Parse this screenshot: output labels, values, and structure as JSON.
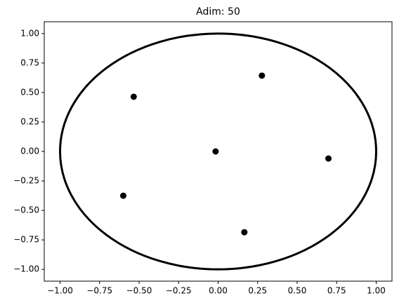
{
  "chart_data": {
    "type": "scatter",
    "title": "Adim: 50",
    "x": [
      0.277,
      -0.534,
      -0.016,
      0.698,
      -0.6,
      0.166
    ],
    "values": [
      0.643,
      0.464,
      0.0,
      -0.06,
      -0.375,
      -0.685
    ],
    "color": "#000000",
    "circle": {
      "center": [
        0,
        0
      ],
      "radius": 1,
      "color": "#000000"
    },
    "xlim": [
      -1.1,
      1.1
    ],
    "ylim": [
      -1.1,
      1.1
    ],
    "xticks": [
      {
        "value": -1,
        "label": "−1.00"
      },
      {
        "value": -0.75,
        "label": "−0.75"
      },
      {
        "value": -0.5,
        "label": "−0.50"
      },
      {
        "value": -0.25,
        "label": "−0.25"
      },
      {
        "value": 0,
        "label": "0.00"
      },
      {
        "value": 0.25,
        "label": "0.25"
      },
      {
        "value": 0.5,
        "label": "0.50"
      },
      {
        "value": 0.75,
        "label": "0.75"
      },
      {
        "value": 1,
        "label": "1.00"
      }
    ],
    "yticks": [
      {
        "value": -1,
        "label": "−1.00"
      },
      {
        "value": -0.75,
        "label": "−0.75"
      },
      {
        "value": -0.5,
        "label": "−0.50"
      },
      {
        "value": -0.25,
        "label": "−0.25"
      },
      {
        "value": 0,
        "label": "0.00"
      },
      {
        "value": 0.25,
        "label": "0.25"
      },
      {
        "value": 0.5,
        "label": "0.50"
      },
      {
        "value": 0.75,
        "label": "0.75"
      },
      {
        "value": 1,
        "label": "1.00"
      }
    ],
    "grid": false
  }
}
